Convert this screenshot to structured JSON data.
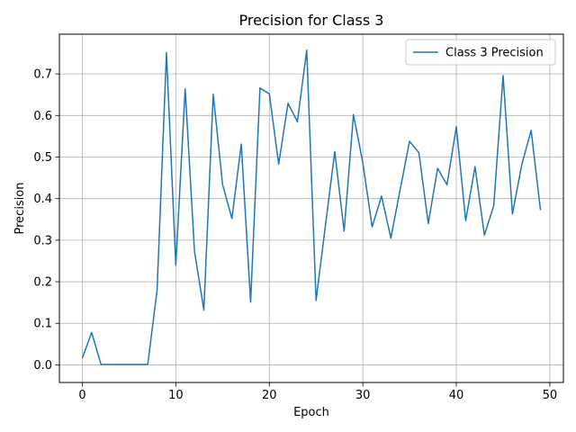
{
  "chart_data": {
    "type": "line",
    "title": "Precision for Class 3",
    "xlabel": "Epoch",
    "ylabel": "Precision",
    "xlim": [
      -2.45,
      51.45
    ],
    "ylim": [
      -0.0424,
      0.7955
    ],
    "xticks": [
      0,
      10,
      20,
      30,
      40,
      50
    ],
    "yticks": [
      0.0,
      0.1,
      0.2,
      0.3,
      0.4,
      0.5,
      0.6,
      0.7
    ],
    "xtick_labels": [
      "0",
      "10",
      "20",
      "30",
      "40",
      "50"
    ],
    "ytick_labels": [
      "0.0",
      "0.1",
      "0.2",
      "0.3",
      "0.4",
      "0.5",
      "0.6",
      "0.7"
    ],
    "grid": true,
    "legend": "upper right",
    "series": [
      {
        "name": "Class 3 Precision",
        "color": "#1f77b4",
        "x": [
          0,
          1,
          2,
          3,
          4,
          5,
          6,
          7,
          8,
          9,
          10,
          11,
          12,
          13,
          14,
          15,
          16,
          17,
          18,
          19,
          20,
          21,
          22,
          23,
          24,
          25,
          26,
          27,
          28,
          29,
          30,
          31,
          32,
          33,
          34,
          35,
          36,
          37,
          38,
          39,
          40,
          41,
          42,
          43,
          44,
          45,
          46,
          47,
          48,
          49
        ],
        "y": [
          0.016,
          0.078,
          0.001,
          0.001,
          0.001,
          0.001,
          0.001,
          0.001,
          0.18,
          0.751,
          0.24,
          0.664,
          0.273,
          0.132,
          0.651,
          0.434,
          0.352,
          0.531,
          0.151,
          0.666,
          0.652,
          0.483,
          0.629,
          0.585,
          0.757,
          0.155,
          0.335,
          0.513,
          0.322,
          0.602,
          0.486,
          0.332,
          0.406,
          0.305,
          0.423,
          0.538,
          0.51,
          0.34,
          0.473,
          0.433,
          0.573,
          0.347,
          0.477,
          0.312,
          0.383,
          0.696,
          0.363,
          0.482,
          0.564,
          0.372
        ]
      }
    ]
  }
}
